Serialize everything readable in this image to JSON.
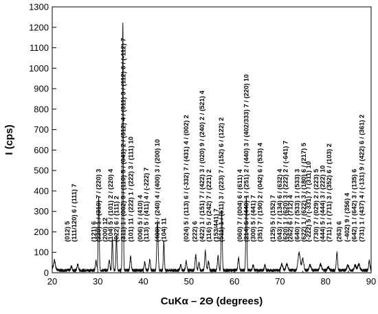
{
  "chart_data": {
    "type": "line",
    "title": "",
    "xlabel": "CuKα – 2Θ (degrees)",
    "ylabel": "I (cps)",
    "xlim": [
      20,
      90
    ],
    "ylim": [
      0,
      1300
    ],
    "x_ticks": [
      20,
      30,
      40,
      50,
      60,
      70,
      80,
      90
    ],
    "y_ticks": [
      0,
      100,
      200,
      300,
      400,
      500,
      600,
      700,
      800,
      900,
      1000,
      1100,
      1200,
      1300
    ],
    "grid": false,
    "legend": "none",
    "line_color": "#000000",
    "baseline": 12,
    "peaks": [
      {
        "x": 20.5,
        "y": 40,
        "w": 0.25
      },
      {
        "x": 24.2,
        "y": 20,
        "w": 0.2
      },
      {
        "x": 25.6,
        "y": 30,
        "w": 0.2
      },
      {
        "x": 29.6,
        "y": 45,
        "w": 0.2
      },
      {
        "x": 30.2,
        "y": 355,
        "w": 0.16
      },
      {
        "x": 32.5,
        "y": 50,
        "w": 0.2
      },
      {
        "x": 33.2,
        "y": 150,
        "w": 0.16
      },
      {
        "x": 34.1,
        "y": 165,
        "w": 0.16
      },
      {
        "x": 35.5,
        "y": 1215,
        "w": 0.14
      },
      {
        "x": 37.2,
        "y": 65,
        "w": 0.2
      },
      {
        "x": 40.3,
        "y": 40,
        "w": 0.2
      },
      {
        "x": 41.4,
        "y": 50,
        "w": 0.2
      },
      {
        "x": 43.1,
        "y": 240,
        "w": 0.2
      },
      {
        "x": 44.5,
        "y": 140,
        "w": 0.16
      },
      {
        "x": 48.2,
        "y": 25,
        "w": 0.2
      },
      {
        "x": 49.4,
        "y": 45,
        "w": 0.2
      },
      {
        "x": 51.5,
        "y": 75,
        "w": 0.2
      },
      {
        "x": 52.2,
        "y": 35,
        "w": 0.2
      },
      {
        "x": 53.6,
        "y": 95,
        "w": 0.2
      },
      {
        "x": 54.3,
        "y": 45,
        "w": 0.2
      },
      {
        "x": 56.4,
        "y": 70,
        "w": 0.2
      },
      {
        "x": 57.2,
        "y": 290,
        "w": 0.17
      },
      {
        "x": 60.9,
        "y": 60,
        "w": 0.2
      },
      {
        "x": 62.6,
        "y": 360,
        "w": 0.16
      },
      {
        "x": 64.1,
        "y": 25,
        "w": 0.2
      },
      {
        "x": 66.7,
        "y": 25,
        "w": 0.2
      },
      {
        "x": 70.4,
        "y": 30,
        "w": 0.3
      },
      {
        "x": 71.5,
        "y": 30,
        "w": 0.3
      },
      {
        "x": 74.2,
        "y": 85,
        "w": 0.35
      },
      {
        "x": 75.0,
        "y": 55,
        "w": 0.3
      },
      {
        "x": 76.6,
        "y": 25,
        "w": 0.3
      },
      {
        "x": 78.9,
        "y": 30,
        "w": 0.3
      },
      {
        "x": 80.6,
        "y": 15,
        "w": 0.3
      },
      {
        "x": 82.5,
        "y": 85,
        "w": 0.2
      },
      {
        "x": 84.9,
        "y": 25,
        "w": 0.3
      },
      {
        "x": 86.5,
        "y": 25,
        "w": 0.3
      },
      {
        "x": 87.3,
        "y": 30,
        "w": 0.3
      },
      {
        "x": 89.6,
        "y": 45,
        "w": 0.2
      }
    ],
    "annotations": [
      {
        "text": "(012) 5",
        "x": 23.3
      },
      {
        "text": "(111/120) 6 / (111) 7",
        "x": 24.8
      },
      {
        "text": "(121) 6",
        "x": 29.1
      },
      {
        "text": "(220) 1 / (310) 7 / (220) 3",
        "x": 30.2
      },
      {
        "text": "(200) 12",
        "x": 31.6
      },
      {
        "text": "(104) 5 / (101) 2 / (220) 4",
        "x": 32.8
      },
      {
        "text": "(022) 6 / (111) 2",
        "x": 34.1
      },
      {
        "text": "(311) 1 / (002) 9 / (110) 5 / (041) 2 / (312) 4 / (311) 3 / (112) 6 / (-112) 7",
        "x": 35.6
      },
      {
        "text": "(101) 11 / (222) 1 / (222) 3 / (111) 10",
        "x": 37.3
      },
      {
        "text": "(006) 5 / (410) 4",
        "x": 39.3
      },
      {
        "text": "(113) 5 / (411) 4 / (-222) 7",
        "x": 40.7
      },
      {
        "text": "(400) 1 / (240) 4 / (400) 3 / (200) 10",
        "x": 43.1
      },
      {
        "text": "(104) 11",
        "x": 44.5
      },
      {
        "text": "(024) 5 / (113) 6 / (-332) 7 / (431) 4 / (002) 2",
        "x": 49.4
      },
      {
        "text": "(222) 6",
        "x": 51.3
      },
      {
        "text": "(422) 1 / (151) 7 / (422) 3 / (020) 9 / (240) 2 / (521) 4",
        "x": 52.9
      },
      {
        "text": "(116) 5 / (242) 7 / (221) 2",
        "x": 54.4
      },
      {
        "text": "(153/441) 7",
        "x": 56.0
      },
      {
        "text": "(511) 1 / (511) 3 / (223) 7 / (152) 6 / (122) 2",
        "x": 57.1
      },
      {
        "text": "(060) 7 / (004) 6 / (611) 4",
        "x": 61.2
      },
      {
        "text": "(214) 5 / (440) 1 / (251) 2 / (440) 3 / (402/333) 7 / (220) 10",
        "x": 62.6
      },
      {
        "text": "(300) 5 / (441) 7",
        "x": 64.1
      },
      {
        "text": "(351) 7 / (190) 2 / (042) 6 / (533) 4",
        "x": 65.6
      },
      {
        "text": "(125) 5 / (152) 7",
        "x": 68.4
      },
      {
        "text": "(043) 7 / (134) 6 / (632) 4",
        "x": 69.9
      },
      {
        "text": "(620) 1 / (620) 3 / (222) 2 / (-641) 7",
        "x": 71.2
      },
      {
        "text": "(262) 6 / (712) 4",
        "x": 72.3
      },
      {
        "text": "(640) 7 / (533) 1 / (533) 3",
        "x": 73.8
      },
      {
        "text": "(622) 1 / (622) 3 / (180) 6 / (217) 5",
        "x": 75.2
      },
      {
        "text": "(-222) 5 / (-331) 7 / (311) 10",
        "x": 76.3
      },
      {
        "text": "(730) 7 / (029) 2 / (223) 5",
        "x": 77.9
      },
      {
        "text": "(444) 5 / (444) 3 / (222) 10",
        "x": 79.4
      },
      {
        "text": "(711) 1 / (711) 3 / (352) 6 / (103) 2",
        "x": 80.8
      },
      {
        "text": "(263) 6",
        "x": 83.0
      },
      {
        "text": "(-402) 9 / (356) 4",
        "x": 84.7
      },
      {
        "text": "(642) 1 / (642) 3 / (135) 6",
        "x": 86.3
      },
      {
        "text": "(731) 1 / (437) 4 / (-131) 9 / (422) 6 / (361) 2",
        "x": 88.0
      }
    ]
  }
}
